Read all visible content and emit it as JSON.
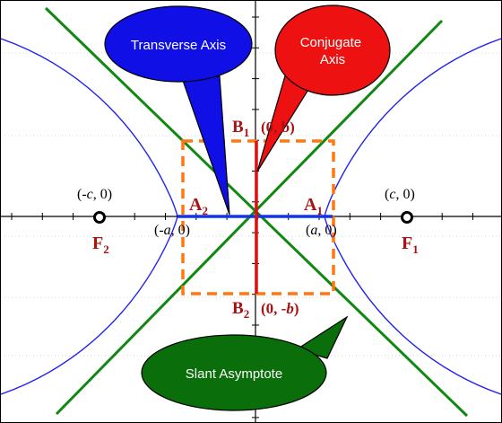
{
  "callouts": {
    "transverse": {
      "line1": "Transverse Axis",
      "fill": "#1010e6"
    },
    "conjugate": {
      "line1": "Conjugate",
      "line2": "Axis",
      "fill": "#ee1111"
    },
    "asymptote": {
      "line1": "Slant Asymptote",
      "fill": "#0a6e0a"
    }
  },
  "labels": {
    "b1": {
      "letter": "B",
      "sub": "1",
      "coord": "(0, b)"
    },
    "b2": {
      "letter": "B",
      "sub": "2",
      "coord_pre": "(0, -",
      "coord_it": "b",
      "coord_post": ")"
    },
    "a1": {
      "letter": "A",
      "sub": "1"
    },
    "a2": {
      "letter": "A",
      "sub": "2"
    },
    "f1": {
      "letter": "F",
      "sub": "1"
    },
    "f2": {
      "letter": "F",
      "sub": "2"
    },
    "plus_c": {
      "pre": "(",
      "it": "c",
      "post": ", 0)"
    },
    "minus_c": {
      "pre": "(-",
      "it": "c",
      "post": ", 0)"
    },
    "plus_a": {
      "pre": "(",
      "it": "a",
      "post": ", 0)"
    },
    "minus_a": {
      "pre": "(-",
      "it": "a",
      "post": ", 0)"
    }
  },
  "colors": {
    "hyperbola": "#2222ee",
    "asymptote": "#118811",
    "transverse_axis": "#1133ee",
    "conjugate_axis": "#dd1111",
    "box": "#ff7711",
    "label": "#aa1111",
    "axis": "#000000",
    "grid": "#bbbbbb"
  }
}
